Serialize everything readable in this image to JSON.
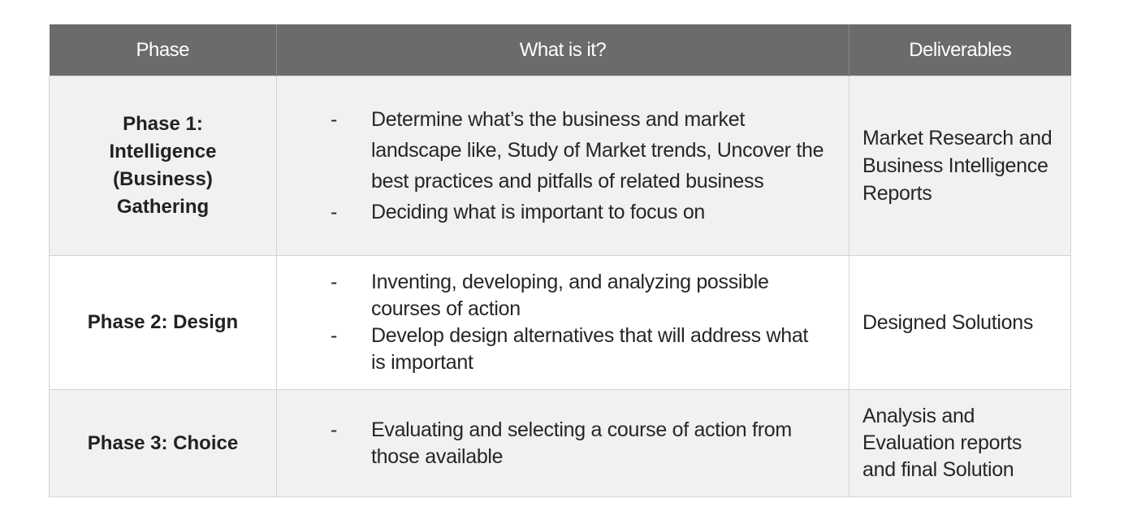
{
  "table": {
    "headers": {
      "phase": "Phase",
      "what": "What is it?",
      "deliverables": "Deliverables"
    },
    "rows": [
      {
        "phase": "Phase 1: Intelligence (Business) Gathering",
        "items": [
          "Determine what’s the business and market landscape like, Study of Market trends, Uncover the best practices and pitfalls of related business",
          "Deciding what is important to focus on"
        ],
        "deliverables": "Market Research and Business Intelligence Reports"
      },
      {
        "phase": "Phase 2: Design",
        "items": [
          "Inventing, developing, and analyzing possible courses of action",
          "Develop design alternatives that will address what is important"
        ],
        "deliverables": "Designed Solutions"
      },
      {
        "phase": "Phase 3: Choice",
        "items": [
          "Evaluating and selecting a course of action from those available"
        ],
        "deliverables": "Analysis and Evaluation reports and final Solution"
      }
    ]
  }
}
